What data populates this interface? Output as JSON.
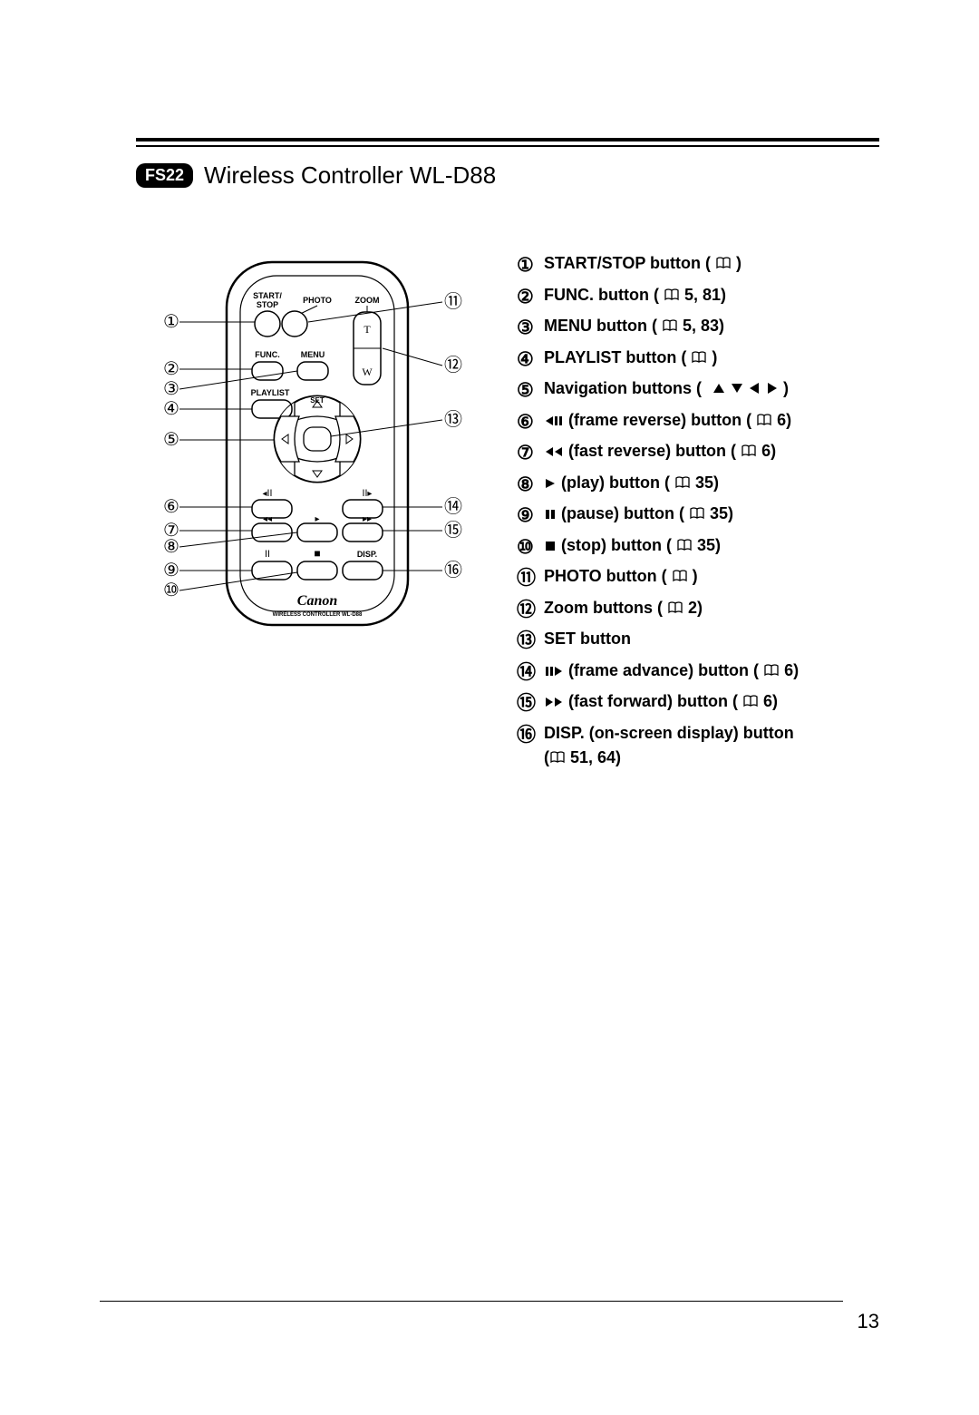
{
  "page": {
    "badge": "FS22",
    "title": "Wireless Controller WL-D88",
    "page_number": "13",
    "colors": {
      "text": "#000000",
      "bg": "#ffffff",
      "rule": "#000000"
    }
  },
  "diagram": {
    "brand": "Canon",
    "model_label": "WIRELESS CONTROLLER WL-D88",
    "labels": {
      "start_stop": "START/\nSTOP",
      "photo": "PHOTO",
      "zoom": "ZOOM",
      "func": "FUNC.",
      "menu": "MENU",
      "playlist": "PLAYLIST",
      "set": "SET",
      "disp": "DISP.",
      "t": "T",
      "w": "W"
    },
    "left_callouts": [
      "①",
      "②",
      "③",
      "④",
      "⑤",
      "⑥",
      "⑦",
      "⑧",
      "⑨",
      "⑩"
    ],
    "right_callouts": [
      "⑪",
      "⑫",
      "⑬",
      "⑭",
      "⑮",
      "⑯"
    ]
  },
  "legend": [
    {
      "num": "①",
      "pre": "",
      "label": "START/STOP button (",
      "ref": ")",
      "sym": null
    },
    {
      "num": "②",
      "pre": "",
      "label": "FUNC. button (",
      "ref": "5, 81)",
      "sym": null
    },
    {
      "num": "③",
      "pre": "",
      "label": "MENU button (",
      "ref": "5, 83)",
      "sym": null
    },
    {
      "num": "④",
      "pre": "",
      "label": "PLAYLIST button (",
      "ref": ")",
      "sym": null
    },
    {
      "num": "⑤",
      "pre": "",
      "label": "Navigation buttons (",
      "ref": null,
      "sym": "navarrows"
    },
    {
      "num": "⑥",
      "pre": "frame-rev",
      "label": "(frame reverse) button (",
      "ref": "6)",
      "sym": null
    },
    {
      "num": "⑦",
      "pre": "fast-rev",
      "label": "(fast reverse) button (",
      "ref": "6)",
      "sym": null
    },
    {
      "num": "⑧",
      "pre": "play",
      "label": "(play) button (",
      "ref": "35)",
      "sym": null
    },
    {
      "num": "⑨",
      "pre": "pause",
      "label": "(pause) button (",
      "ref": "35)",
      "sym": null
    },
    {
      "num": "⑩",
      "pre": "stop",
      "label": "(stop) button (",
      "ref": "35)",
      "sym": null
    },
    {
      "num": "⑪",
      "pre": "",
      "label": "PHOTO button (",
      "ref": ")",
      "sym": null
    },
    {
      "num": "⑫",
      "pre": "",
      "label": "Zoom buttons (",
      "ref": "2)",
      "sym": null
    },
    {
      "num": "⑬",
      "pre": "",
      "label": "SET button",
      "ref": null,
      "sym": null,
      "nobook": true
    },
    {
      "num": "⑭",
      "pre": "frame-adv",
      "label": "(frame advance) button (",
      "ref": "6)",
      "sym": null
    },
    {
      "num": "⑮",
      "pre": "fast-fwd",
      "label": "(fast forward) button (",
      "ref": "6)",
      "sym": null
    },
    {
      "num": "⑯",
      "pre": "",
      "label": "DISP. (on-screen display) button",
      "ref": null,
      "sym": null,
      "line2": "( 51, 64)"
    }
  ]
}
